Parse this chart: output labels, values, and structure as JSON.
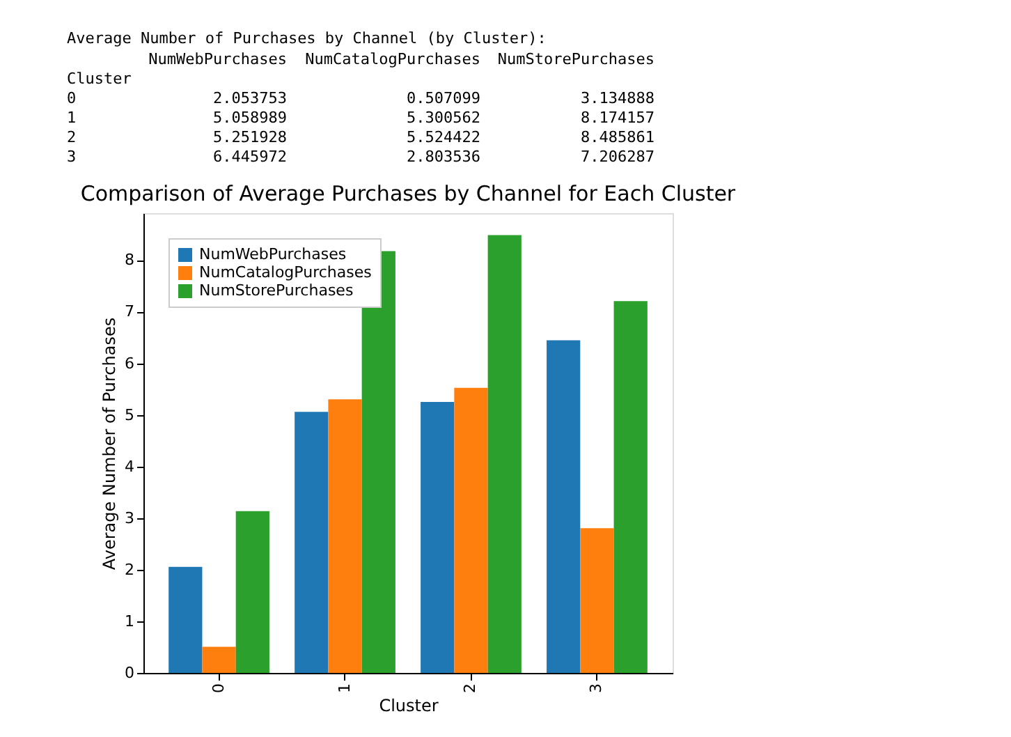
{
  "chart_data": {
    "type": "bar",
    "title": "Comparison of Average Purchases by Channel for Each Cluster",
    "annotations": [
      "Average Number of Purchases by Channel (by Cluster):",
      "2.053753",
      "0.507099",
      "3.134888",
      "5.058989",
      "5.300562",
      "8.174157",
      "5.251928",
      "5.524422",
      "8.485861",
      "6.445972",
      "2.803536",
      "7.206287"
    ],
    "xlabel": "Cluster",
    "ylabel": "Average Number of Purchases",
    "categories": [
      "0",
      "1",
      "2",
      "3"
    ],
    "series": [
      {
        "name": "NumWebPurchases",
        "color": "#1f77b4",
        "values": [
          2.053753,
          5.058989,
          5.251928,
          6.445972
        ]
      },
      {
        "name": "NumCatalogPurchases",
        "color": "#ff7f0e",
        "values": [
          0.507099,
          5.300562,
          5.524422,
          2.803536
        ]
      },
      {
        "name": "NumStorePurchases",
        "color": "#2ca02c",
        "values": [
          3.134888,
          8.174157,
          8.485861,
          7.206287
        ]
      }
    ],
    "ylim": [
      0,
      8.91
    ],
    "yticks": [
      0,
      1,
      2,
      3,
      4,
      5,
      6,
      7,
      8
    ],
    "legend": "top left",
    "grid": false
  }
}
